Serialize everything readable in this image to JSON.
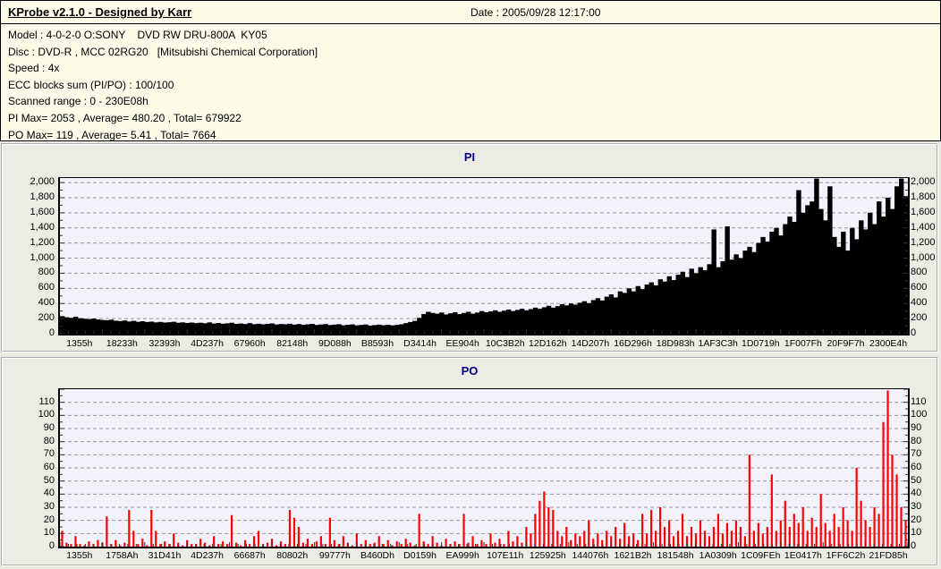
{
  "header": {
    "title": "KProbe v2.1.0 - Designed by Karr",
    "date": "Date : 2005/09/28 12:17:00"
  },
  "info": {
    "lines": [
      "Model : 4-0-2-0 O:SONY    DVD RW DRU-800A  KY05",
      "Disc : DVD-R , MCC 02RG20   [Mitsubishi Chemical Corporation]",
      "Speed : 4x",
      "ECC blocks sum (PI/PO) : 100/100",
      "Scanned range : 0 - 230E08h",
      "PI Max= 2053 , Average= 480.20 , Total= 679922",
      "PO Max= 119 , Average= 5.41 , Total= 7664"
    ]
  },
  "colors": {
    "background": "#ECEBE2",
    "info_bg": "#FCFCE9",
    "plot_bg": "#F2F1FC",
    "grid": "#97979E",
    "tick": "#333333",
    "pi_bar": "#000000",
    "po_bar": "#FF0000",
    "title_text": "#000080"
  },
  "chart_data": [
    {
      "id": "pi",
      "type": "bar",
      "title": "PI",
      "bar_color": "#000000",
      "axis_top": 2060,
      "ylim": [
        0,
        2000
      ],
      "grid": true,
      "y_ticks": [
        {
          "value": 0,
          "label": "0"
        },
        {
          "value": 200,
          "label": "200"
        },
        {
          "value": 400,
          "label": "400"
        },
        {
          "value": 600,
          "label": "600"
        },
        {
          "value": 800,
          "label": "800"
        },
        {
          "value": 1000,
          "label": "1,000"
        },
        {
          "value": 1200,
          "label": "1,200"
        },
        {
          "value": 1400,
          "label": "1,400"
        },
        {
          "value": 1600,
          "label": "1,600"
        },
        {
          "value": 1800,
          "label": "1,800"
        },
        {
          "value": 2000,
          "label": "2,000"
        }
      ],
      "x_tick_labels": [
        "1355h",
        "18233h",
        "32393h",
        "4D237h",
        "67960h",
        "82148h",
        "9D088h",
        "B8593h",
        "D3414h",
        "EE904h",
        "10C3B2h",
        "12D162h",
        "14D207h",
        "16D296h",
        "18D983h",
        "1AF3C3h",
        "1D0719h",
        "1F007Fh",
        "20F9F7h",
        "2300E4h"
      ],
      "values": [
        232,
        218,
        210,
        225,
        205,
        198,
        192,
        200,
        188,
        182,
        178,
        185,
        172,
        168,
        175,
        162,
        170,
        158,
        165,
        155,
        160,
        150,
        156,
        148,
        152,
        158,
        145,
        150,
        142,
        148,
        140,
        145,
        138,
        150,
        135,
        142,
        132,
        138,
        145,
        130,
        135,
        128,
        140,
        126,
        132,
        124,
        130,
        136,
        122,
        128,
        125,
        132,
        120,
        128,
        118,
        124,
        130,
        116,
        122,
        128,
        115,
        120,
        126,
        112,
        118,
        124,
        110,
        116,
        122,
        108,
        114,
        120,
        112,
        118,
        110,
        116,
        125,
        140,
        155,
        170,
        210,
        260,
        290,
        275,
        265,
        280,
        255,
        270,
        285,
        260,
        275,
        290,
        265,
        280,
        300,
        285,
        295,
        310,
        290,
        305,
        320,
        300,
        315,
        330,
        310,
        325,
        345,
        330,
        350,
        370,
        345,
        365,
        390,
        375,
        400,
        385,
        410,
        430,
        405,
        445,
        470,
        440,
        490,
        520,
        480,
        560,
        540,
        600,
        560,
        630,
        590,
        650,
        680,
        640,
        720,
        690,
        760,
        710,
        780,
        820,
        750,
        860,
        800,
        880,
        840,
        920,
        1380,
        880,
        960,
        1420,
        980,
        1050,
        1000,
        1100,
        1150,
        1080,
        1200,
        1280,
        1220,
        1350,
        1400,
        1300,
        1450,
        1550,
        1480,
        1900,
        1600,
        1700,
        1750,
        2053,
        1650,
        1500,
        1950,
        1280,
        1150,
        1350,
        1100,
        1400,
        1250,
        1500,
        1380,
        1600,
        1450,
        1750,
        1550,
        1800,
        1650,
        1950,
        2053,
        1820
      ]
    },
    {
      "id": "po",
      "type": "bar",
      "title": "PO",
      "bar_color": "#FF0000",
      "axis_top": 120,
      "ylim": [
        0,
        110
      ],
      "grid": true,
      "y_ticks": [
        {
          "value": 0,
          "label": "0"
        },
        {
          "value": 10,
          "label": "10"
        },
        {
          "value": 20,
          "label": "20"
        },
        {
          "value": 30,
          "label": "30"
        },
        {
          "value": 40,
          "label": "40"
        },
        {
          "value": 50,
          "label": "50"
        },
        {
          "value": 60,
          "label": "60"
        },
        {
          "value": 70,
          "label": "70"
        },
        {
          "value": 80,
          "label": "80"
        },
        {
          "value": 90,
          "label": "90"
        },
        {
          "value": 100,
          "label": "100"
        },
        {
          "value": 110,
          "label": "110"
        }
      ],
      "x_tick_labels": [
        "1355h",
        "1758Ah",
        "31D41h",
        "4D237h",
        "66687h",
        "80802h",
        "99777h",
        "B460Dh",
        "D0159h",
        "EA999h",
        "107E11h",
        "125925h",
        "144076h",
        "1621B2h",
        "181548h",
        "1A0309h",
        "1C09FEh",
        "1E0417h",
        "1FF6C2h",
        "21FD85h"
      ],
      "values": [
        12,
        3,
        2,
        8,
        2,
        1,
        4,
        2,
        5,
        3,
        23,
        2,
        5,
        1,
        3,
        28,
        12,
        2,
        6,
        1,
        28,
        12,
        2,
        4,
        2,
        10,
        3,
        1,
        5,
        2,
        2,
        6,
        3,
        1,
        8,
        2,
        4,
        2,
        24,
        3,
        1,
        5,
        2,
        8,
        12,
        2,
        3,
        6,
        1,
        4,
        2,
        28,
        22,
        15,
        3,
        6,
        2,
        4,
        8,
        2,
        22,
        5,
        2,
        8,
        3,
        1,
        10,
        2,
        5,
        2,
        3,
        8,
        2,
        5,
        1,
        4,
        2,
        6,
        3,
        1,
        25,
        4,
        2,
        8,
        3,
        1,
        6,
        2,
        4,
        2,
        25,
        3,
        8,
        2,
        5,
        2,
        10,
        3,
        6,
        2,
        12,
        4,
        8,
        3,
        15,
        10,
        25,
        35,
        42,
        30,
        28,
        12,
        8,
        15,
        5,
        10,
        8,
        12,
        20,
        6,
        10,
        5,
        12,
        8,
        15,
        6,
        18,
        8,
        10,
        5,
        25,
        10,
        28,
        12,
        30,
        15,
        20,
        8,
        12,
        25,
        8,
        15,
        10,
        20,
        12,
        8,
        15,
        25,
        10,
        18,
        12,
        20,
        15,
        8,
        70,
        12,
        18,
        10,
        15,
        55,
        12,
        20,
        35,
        15,
        25,
        18,
        30,
        12,
        22,
        15,
        40,
        18,
        12,
        25,
        15,
        30,
        20,
        12,
        60,
        35,
        20,
        15,
        30,
        25,
        95,
        119,
        70,
        55,
        30,
        20
      ]
    }
  ]
}
